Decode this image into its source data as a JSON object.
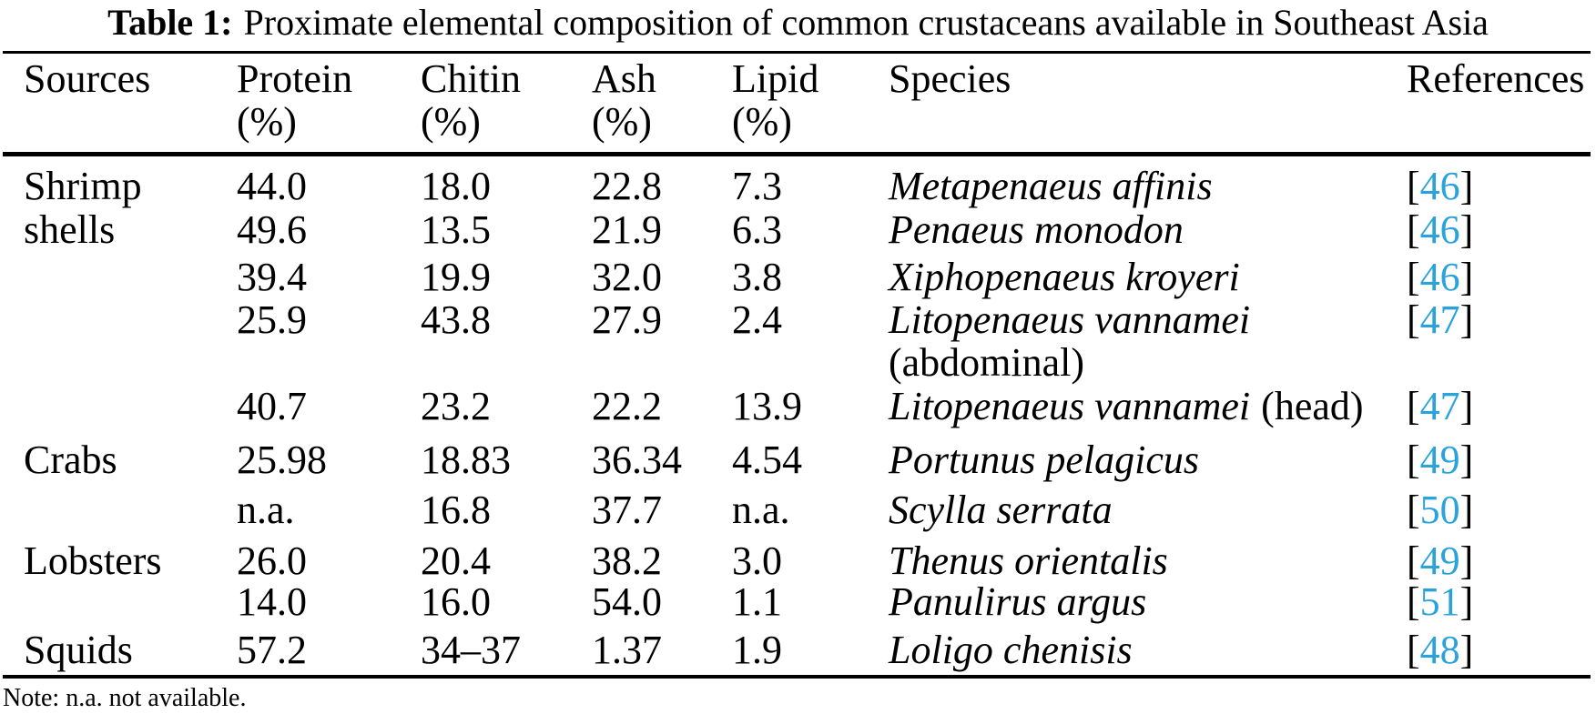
{
  "caption": {
    "label": "Table 1:",
    "text": "Proximate elemental composition of common crustaceans available in Southeast Asia"
  },
  "accent_color": "#2aa3dd",
  "columns": [
    {
      "name": "Sources",
      "unit": ""
    },
    {
      "name": "Protein",
      "unit": "(%)"
    },
    {
      "name": "Chitin",
      "unit": "(%)"
    },
    {
      "name": "Ash",
      "unit": "(%)"
    },
    {
      "name": "Lipid",
      "unit": "(%)"
    },
    {
      "name": "Species",
      "unit": ""
    },
    {
      "name": "References",
      "unit": ""
    }
  ],
  "rows": [
    {
      "source": "Shrimp",
      "protein": "44.0",
      "chitin": "18.0",
      "ash": "22.8",
      "lipid": "7.3",
      "species": "Metapenaeus affinis",
      "ref": "46"
    },
    {
      "source": "shells",
      "protein": "49.6",
      "chitin": "13.5",
      "ash": "21.9",
      "lipid": "6.3",
      "species": "Penaeus monodon",
      "ref": "46"
    },
    {
      "source": "",
      "protein": "39.4",
      "chitin": "19.9",
      "ash": "32.0",
      "lipid": "3.8",
      "species": "Xiphopenaeus kroyeri",
      "ref": "46"
    },
    {
      "source": "",
      "protein": "25.9",
      "chitin": "43.8",
      "ash": "27.9",
      "lipid": "2.4",
      "species": "Litopenaeus vannamei",
      "species_note": "(abdominal)",
      "ref": "47"
    },
    {
      "source": "",
      "protein": "40.7",
      "chitin": "23.2",
      "ash": "22.2",
      "lipid": "13.9",
      "species": "Litopenaeus vannamei",
      "species_note": "(head)",
      "ref": "47"
    },
    {
      "source": "Crabs",
      "protein": "25.98",
      "chitin": "18.83",
      "ash": "36.34",
      "lipid": "4.54",
      "species": "Portunus pelagicus",
      "ref": "49"
    },
    {
      "source": "",
      "protein": "n.a.",
      "chitin": "16.8",
      "ash": "37.7",
      "lipid": "n.a.",
      "species": "Scylla serrata",
      "ref": "50"
    },
    {
      "source": "Lobsters",
      "protein": "26.0",
      "chitin": "20.4",
      "ash": "38.2",
      "lipid": "3.0",
      "species": "Thenus orientalis",
      "ref": "49"
    },
    {
      "source": "",
      "protein": "14.0",
      "chitin": "16.0",
      "ash": "54.0",
      "lipid": "1.1",
      "species": "Panulirus argus",
      "ref": "51"
    },
    {
      "source": "Squids",
      "protein": "57.2",
      "chitin": "34–37",
      "ash": "1.37",
      "lipid": "1.9",
      "species": "Loligo chenisis",
      "ref": "48"
    }
  ],
  "footnote": "Note: n.a. not available."
}
